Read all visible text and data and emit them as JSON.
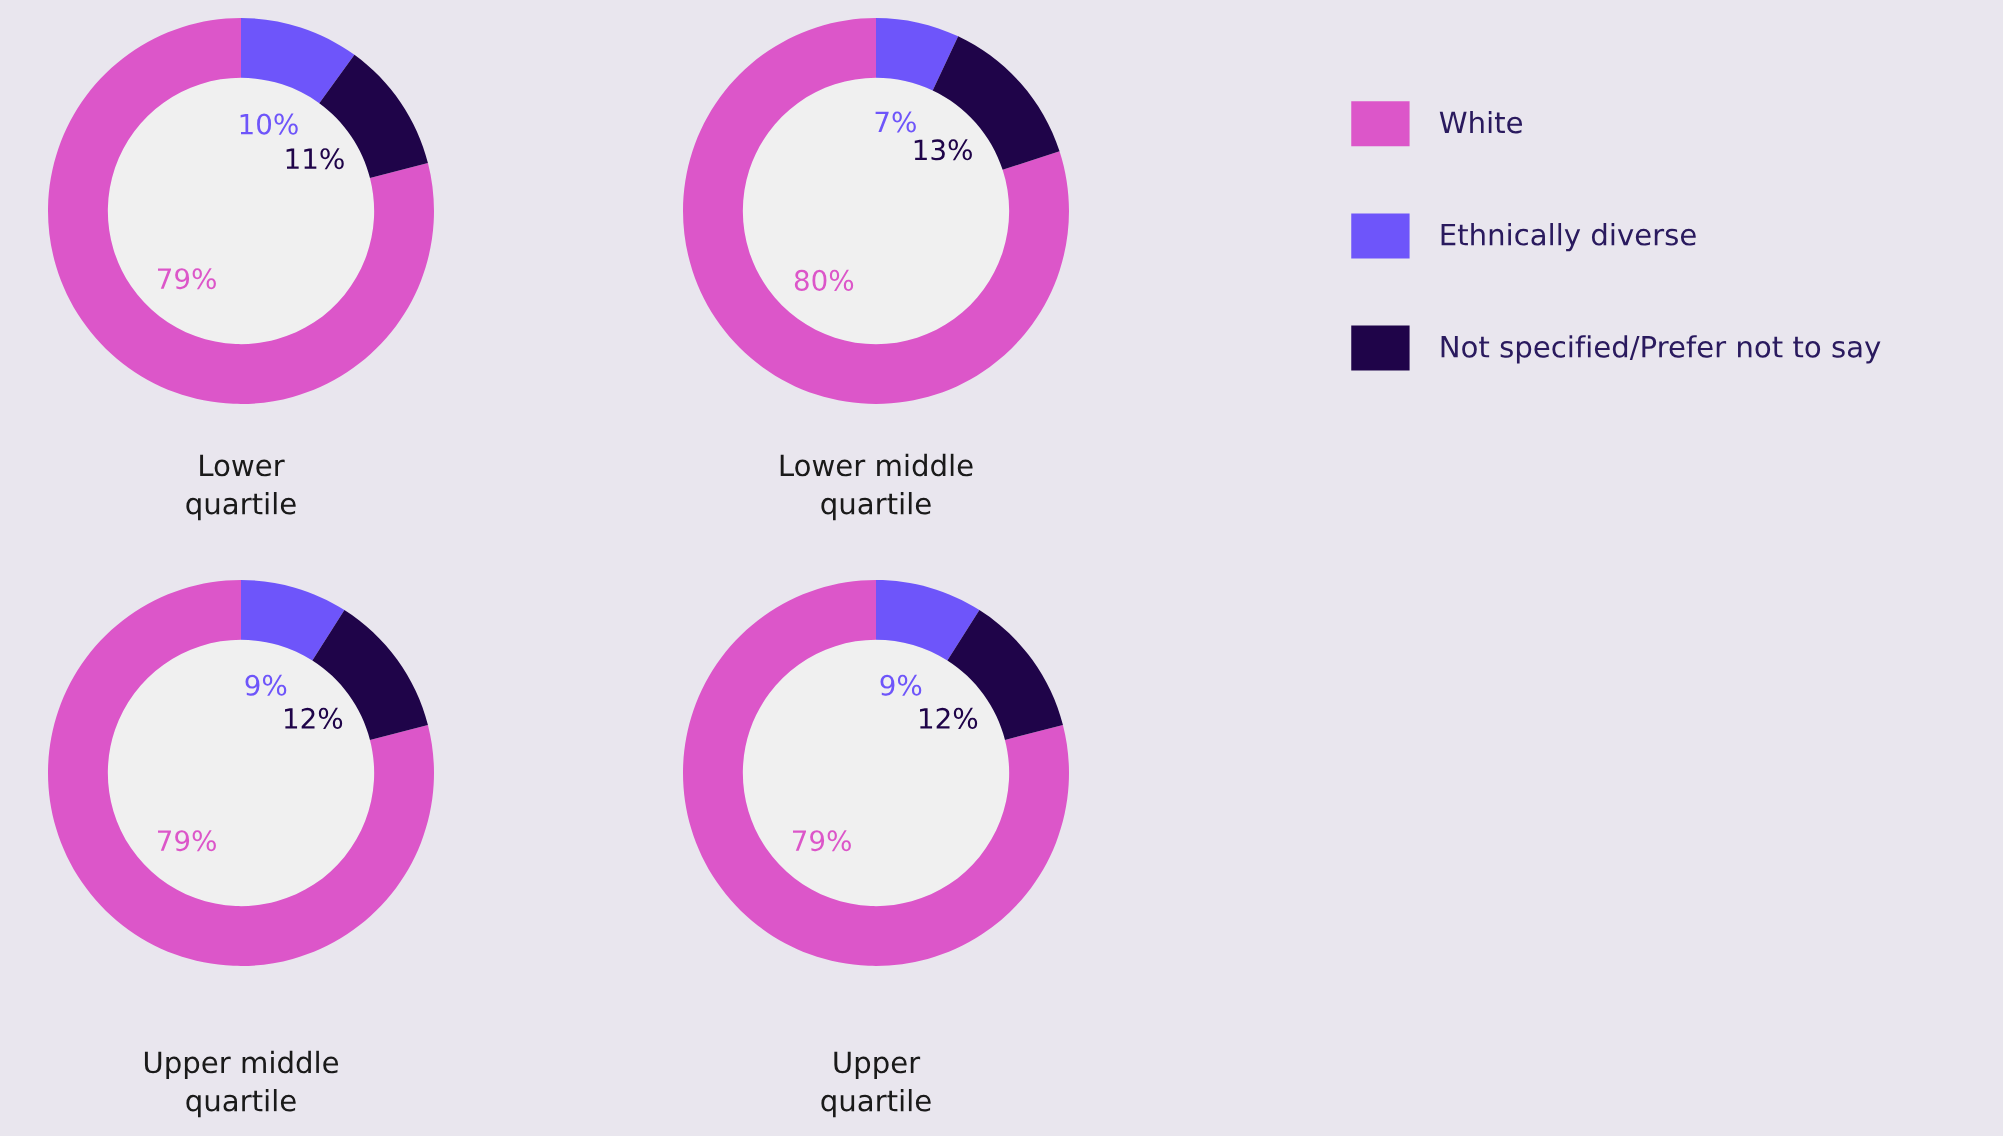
{
  "chart_data": [
    {
      "type": "donut",
      "title": "Lower\nquartile",
      "categories": [
        "White",
        "Ethnically diverse",
        "Not specified/Prefer not to say"
      ],
      "values": [
        79,
        10,
        11
      ],
      "value_labels": [
        "79%",
        "10%",
        "11%"
      ],
      "colors": [
        "#dc56c9",
        "#6e55fa",
        "#1f0449"
      ],
      "legend": "right"
    },
    {
      "type": "donut",
      "title": "Lower middle\nquartile",
      "values": [
        80,
        7,
        13
      ],
      "value_labels": [
        "80%",
        "7%",
        "13%"
      ],
      "colors": [
        "#dc56c9",
        "#6e55fa",
        "#1f0449"
      ]
    },
    {
      "type": "donut",
      "title": "Upper middle\nquartile",
      "values": [
        79,
        9,
        12
      ],
      "value_labels": [
        "79%",
        "9%",
        "12%"
      ],
      "colors": [
        "#dc56c9",
        "#6e55fa",
        "#1f0449"
      ]
    },
    {
      "type": "donut",
      "title": "Upper\nquartile",
      "values": [
        79,
        9,
        12
      ],
      "value_labels": [
        "79%",
        "9%",
        "12%"
      ],
      "colors": [
        "#dc56c9",
        "#6e55fa",
        "#1f0449"
      ]
    }
  ]
}
